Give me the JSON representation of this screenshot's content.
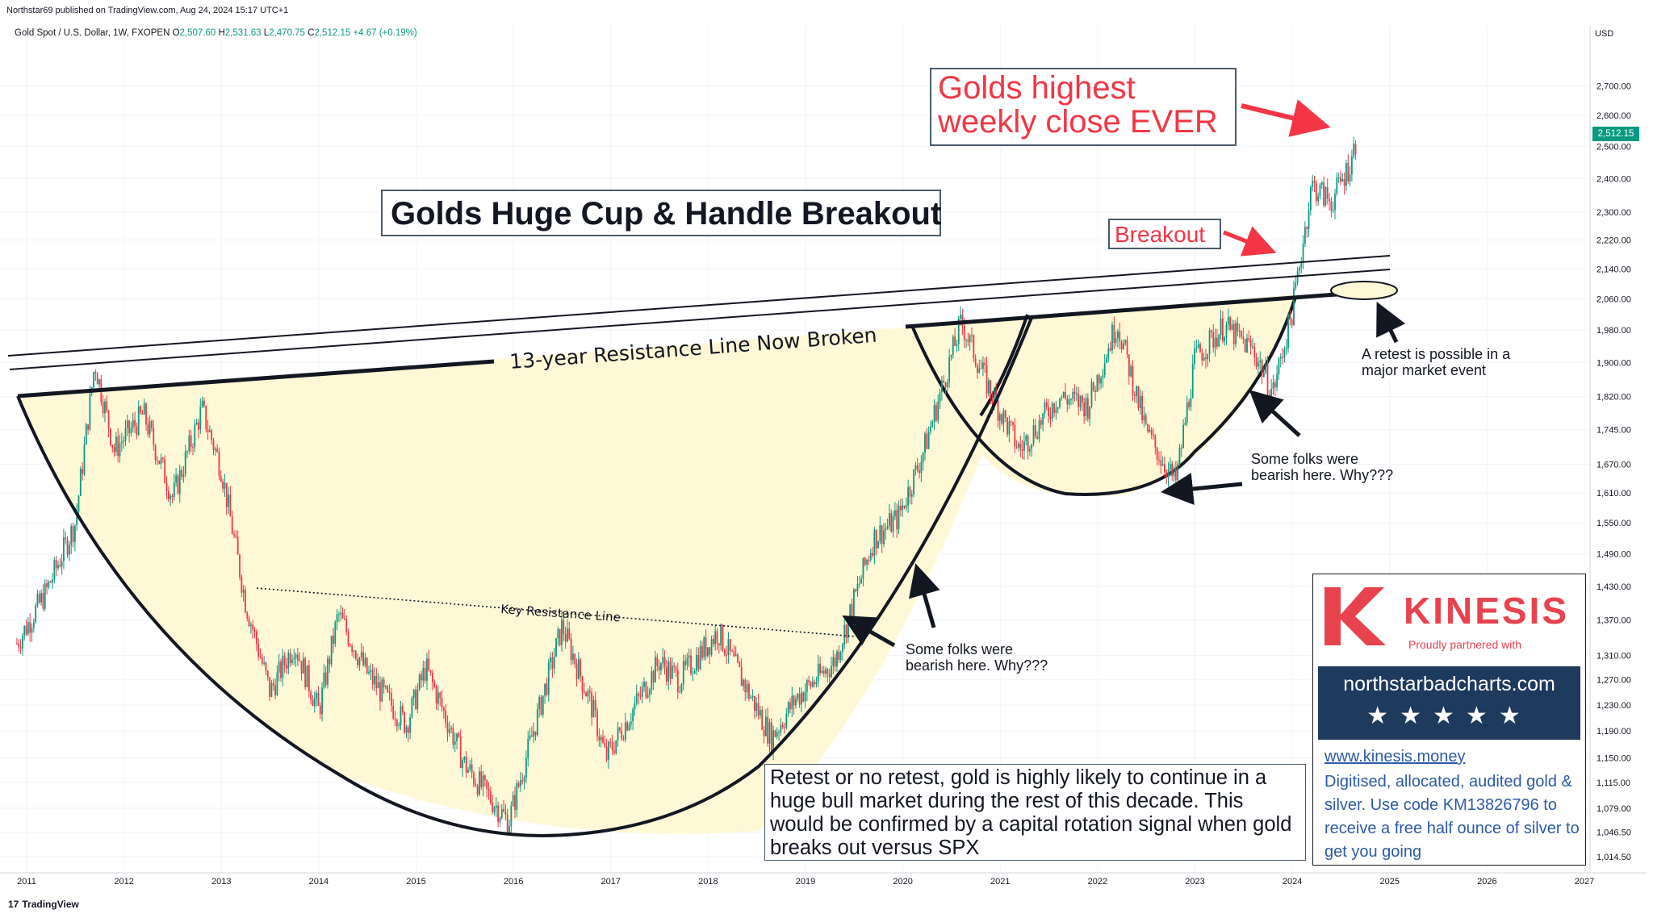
{
  "header": {
    "published": "Northstar69 published on TradingView.com, Aug 24, 2024 15:17 UTC+1",
    "symbol_text": "Gold Spot / U.S. Dollar, 1W, FXOPEN",
    "open_label": "O",
    "open_value": "2,507.60",
    "high_label": "H",
    "high_value": "2,531.63",
    "low_label": "L",
    "low_value": "2,470.75",
    "close_label": "C",
    "close_value": "2,512.15",
    "change": "+4.67 (+0.19%)"
  },
  "price_axis": {
    "currency": "USD",
    "last_price": "2,512.15"
  },
  "footer": {
    "logo_mark": "17",
    "logo_text": "TradingView"
  },
  "annotations": {
    "title": "Golds Huge Cup & Handle Breakout",
    "highest_close": "Golds highest weekly close EVER",
    "breakout": "Breakout",
    "resistance_label": "13-year Resistance Line Now Broken",
    "key_resistance": "Key Resistance Line",
    "bearish_note_1_a": "Some folks were",
    "bearish_note_1_b": "bearish here. Why???",
    "bearish_note_2_a": "Some folks were",
    "bearish_note_2_b": "bearish here. Why???",
    "retest_note_a": "A retest is possible in a",
    "retest_note_b": "major market event",
    "retest_box": "Retest or no retest, gold is highly likely to continue in a huge bull market during the rest of this decade. This would be confirmed by a capital rotation signal when gold breaks out versus SPX"
  },
  "promo": {
    "brand": "KINESIS",
    "partner": "Proudly partnered with",
    "site": "northstarbadcharts.com",
    "stars": "★★★★★",
    "link": "www.kinesis.money",
    "description": "Digitised, allocated, audited gold & silver. Use code KM13826796 to receive a free half ounce of silver to get you going"
  },
  "colors": {
    "up": "#089981",
    "down": "#f23645",
    "cup_fill": "#fff8d6",
    "annotation_red": "#f23645",
    "promo_red": "#e8424f",
    "promo_navy": "#1e3a5c"
  },
  "chart_data": {
    "type": "line",
    "title": "Golds Huge Cup & Handle Breakout",
    "xlabel": "",
    "ylabel": "",
    "y_scale": "log",
    "ylim": [
      990,
      2820
    ],
    "x_ticks": [
      "2011",
      "2012",
      "2013",
      "2014",
      "2015",
      "2016",
      "2017",
      "2018",
      "2019",
      "2020",
      "2021",
      "2022",
      "2023",
      "2024",
      "2025",
      "2026",
      "2027"
    ],
    "y_ticks": [
      "1,014.50",
      "1,046.50",
      "1,079.00",
      "1,115.00",
      "1,150.00",
      "1,190.00",
      "1,230.00",
      "1,270.00",
      "1,310.00",
      "1,370.00",
      "1,430.00",
      "1,490.00",
      "1,550.00",
      "1,610.00",
      "1,670.00",
      "1,745.00",
      "1,820.00",
      "1,900.00",
      "1,980.00",
      "2,060.00",
      "2,140.00",
      "2,220.00",
      "2,300.00",
      "2,400.00",
      "2,500.00",
      "2,600.00",
      "2,700.00"
    ],
    "y_tick_values": [
      1014.5,
      1046.5,
      1079,
      1115,
      1150,
      1190,
      1230,
      1270,
      1310,
      1370,
      1430,
      1490,
      1550,
      1610,
      1670,
      1745,
      1820,
      1900,
      1980,
      2060,
      2140,
      2220,
      2300,
      2400,
      2500,
      2600,
      2700
    ],
    "series": [
      {
        "values_x": [
          2010.9,
          2011.2,
          2011.5,
          2011.7,
          2011.9,
          2012.2,
          2012.5,
          2012.8,
          2013.0,
          2013.25,
          2013.5,
          2013.75,
          2014.0,
          2014.2,
          2014.5,
          2014.9,
          2015.1,
          2015.5,
          2015.95,
          2016.5,
          2016.8,
          2016.95,
          2017.5,
          2017.7,
          2018.1,
          2018.65,
          2018.9,
          2019.3,
          2019.7,
          2019.95,
          2020.2,
          2020.6,
          2020.9,
          2021.2,
          2021.6,
          2021.9,
          2022.2,
          2022.5,
          2022.8,
          2023.0,
          2023.3,
          2023.6,
          2023.8,
          2024.0,
          2024.2,
          2024.4,
          2024.6,
          2024.65
        ],
        "values_y": [
          1330,
          1420,
          1550,
          1900,
          1700,
          1780,
          1600,
          1790,
          1660,
          1400,
          1250,
          1330,
          1220,
          1380,
          1280,
          1200,
          1290,
          1140,
          1060,
          1360,
          1230,
          1150,
          1300,
          1270,
          1350,
          1180,
          1240,
          1300,
          1520,
          1560,
          1690,
          2000,
          1830,
          1700,
          1820,
          1800,
          2000,
          1740,
          1630,
          1910,
          1990,
          1930,
          1830,
          2030,
          2380,
          2330,
          2450,
          2512
        ]
      }
    ],
    "trendlines": [
      {
        "name": "13-year Resistance Line",
        "from": [
          2010.9,
          1820
        ],
        "to": [
          2024.6,
          2070
        ]
      },
      {
        "name": "Key Resistance Line",
        "from": [
          2013.4,
          1390
        ],
        "to": [
          2019.6,
          1300
        ]
      }
    ]
  }
}
